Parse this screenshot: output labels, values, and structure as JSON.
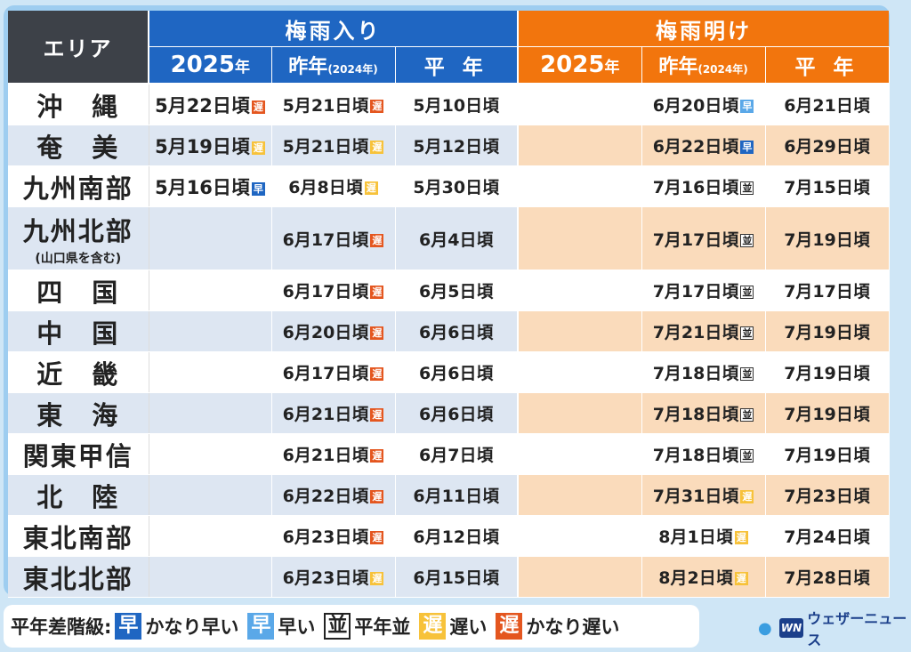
{
  "header": {
    "area": "エリア",
    "onset": "梅雨入り",
    "end": "梅雨明け",
    "col_2025_num": "2025",
    "col_2025_suffix": "年",
    "col_lastyear_main": "昨年",
    "col_lastyear_sub": "(2024年)",
    "col_normal": "平 年"
  },
  "rows": [
    {
      "area": "沖　縄",
      "area_sub": "",
      "on2025": "5月22日頃",
      "on2025_badge": "遅",
      "on2025_badge_type": "vlate",
      "onLast": "5月21日頃",
      "onLast_badge": "遅",
      "onLast_badge_type": "vlate",
      "onNormal": "5月10日頃",
      "end2025": "",
      "endLast": "6月20日頃",
      "endLast_badge": "早",
      "endLast_badge_type": "early",
      "endNormal": "6月21日頃"
    },
    {
      "area": "奄　美",
      "area_sub": "",
      "on2025": "5月19日頃",
      "on2025_badge": "遅",
      "on2025_badge_type": "late",
      "onLast": "5月21日頃",
      "onLast_badge": "遅",
      "onLast_badge_type": "late",
      "onNormal": "5月12日頃",
      "end2025": "",
      "endLast": "6月22日頃",
      "endLast_badge": "早",
      "endLast_badge_type": "vearly",
      "endNormal": "6月29日頃"
    },
    {
      "area": "九州南部",
      "area_sub": "",
      "on2025": "5月16日頃",
      "on2025_badge": "早",
      "on2025_badge_type": "vearly",
      "onLast": "6月8日頃",
      "onLast_badge": "遅",
      "onLast_badge_type": "late",
      "onNormal": "5月30日頃",
      "end2025": "",
      "endLast": "7月16日頃",
      "endLast_badge": "並",
      "endLast_badge_type": "normal",
      "endNormal": "7月15日頃"
    },
    {
      "area": "九州北部",
      "area_sub": "(山口県を含む)",
      "on2025": "",
      "on2025_badge": "",
      "on2025_badge_type": "",
      "onLast": "6月17日頃",
      "onLast_badge": "遅",
      "onLast_badge_type": "vlate",
      "onNormal": "6月4日頃",
      "end2025": "",
      "endLast": "7月17日頃",
      "endLast_badge": "並",
      "endLast_badge_type": "normal",
      "endNormal": "7月19日頃"
    },
    {
      "area": "四　国",
      "area_sub": "",
      "on2025": "",
      "on2025_badge": "",
      "on2025_badge_type": "",
      "onLast": "6月17日頃",
      "onLast_badge": "遅",
      "onLast_badge_type": "vlate",
      "onNormal": "6月5日頃",
      "end2025": "",
      "endLast": "7月17日頃",
      "endLast_badge": "並",
      "endLast_badge_type": "normal",
      "endNormal": "7月17日頃"
    },
    {
      "area": "中　国",
      "area_sub": "",
      "on2025": "",
      "on2025_badge": "",
      "on2025_badge_type": "",
      "onLast": "6月20日頃",
      "onLast_badge": "遅",
      "onLast_badge_type": "vlate",
      "onNormal": "6月6日頃",
      "end2025": "",
      "endLast": "7月21日頃",
      "endLast_badge": "並",
      "endLast_badge_type": "normal",
      "endNormal": "7月19日頃"
    },
    {
      "area": "近　畿",
      "area_sub": "",
      "on2025": "",
      "on2025_badge": "",
      "on2025_badge_type": "",
      "onLast": "6月17日頃",
      "onLast_badge": "遅",
      "onLast_badge_type": "vlate",
      "onNormal": "6月6日頃",
      "end2025": "",
      "endLast": "7月18日頃",
      "endLast_badge": "並",
      "endLast_badge_type": "normal",
      "endNormal": "7月19日頃"
    },
    {
      "area": "東　海",
      "area_sub": "",
      "on2025": "",
      "on2025_badge": "",
      "on2025_badge_type": "",
      "onLast": "6月21日頃",
      "onLast_badge": "遅",
      "onLast_badge_type": "vlate",
      "onNormal": "6月6日頃",
      "end2025": "",
      "endLast": "7月18日頃",
      "endLast_badge": "並",
      "endLast_badge_type": "normal",
      "endNormal": "7月19日頃"
    },
    {
      "area": "関東甲信",
      "area_sub": "",
      "on2025": "",
      "on2025_badge": "",
      "on2025_badge_type": "",
      "onLast": "6月21日頃",
      "onLast_badge": "遅",
      "onLast_badge_type": "vlate",
      "onNormal": "6月7日頃",
      "end2025": "",
      "endLast": "7月18日頃",
      "endLast_badge": "並",
      "endLast_badge_type": "normal",
      "endNormal": "7月19日頃"
    },
    {
      "area": "北　陸",
      "area_sub": "",
      "on2025": "",
      "on2025_badge": "",
      "on2025_badge_type": "",
      "onLast": "6月22日頃",
      "onLast_badge": "遅",
      "onLast_badge_type": "vlate",
      "onNormal": "6月11日頃",
      "end2025": "",
      "endLast": "7月31日頃",
      "endLast_badge": "遅",
      "endLast_badge_type": "late",
      "endNormal": "7月23日頃"
    },
    {
      "area": "東北南部",
      "area_sub": "",
      "on2025": "",
      "on2025_badge": "",
      "on2025_badge_type": "",
      "onLast": "6月23日頃",
      "onLast_badge": "遅",
      "onLast_badge_type": "vlate",
      "onNormal": "6月12日頃",
      "end2025": "",
      "endLast": "8月1日頃",
      "endLast_badge": "遅",
      "endLast_badge_type": "late",
      "endNormal": "7月24日頃"
    },
    {
      "area": "東北北部",
      "area_sub": "",
      "on2025": "",
      "on2025_badge": "",
      "on2025_badge_type": "",
      "onLast": "6月23日頃",
      "onLast_badge": "遅",
      "onLast_badge_type": "late",
      "onNormal": "6月15日頃",
      "end2025": "",
      "endLast": "8月2日頃",
      "endLast_badge": "遅",
      "endLast_badge_type": "late",
      "endNormal": "7月28日頃"
    }
  ],
  "legend": {
    "label": "平年差階級:",
    "items": [
      {
        "glyph": "早",
        "text": "かなり早い",
        "type": "vearly"
      },
      {
        "glyph": "早",
        "text": "早い",
        "type": "early"
      },
      {
        "glyph": "並",
        "text": "平年並",
        "type": "normal"
      },
      {
        "glyph": "遅",
        "text": "遅い",
        "type": "late"
      },
      {
        "glyph": "遅",
        "text": "かなり遅い",
        "type": "vlate"
      }
    ]
  },
  "logo": {
    "mark": "WN",
    "text": "ウェザーニュース"
  },
  "colors": {
    "blue": "#1f66c2",
    "orange": "#f2750d",
    "dark": "#3d4148",
    "vearly": "#1f66c2",
    "early": "#5aa8e8",
    "late": "#f7c23a",
    "vlate": "#e4561f"
  }
}
